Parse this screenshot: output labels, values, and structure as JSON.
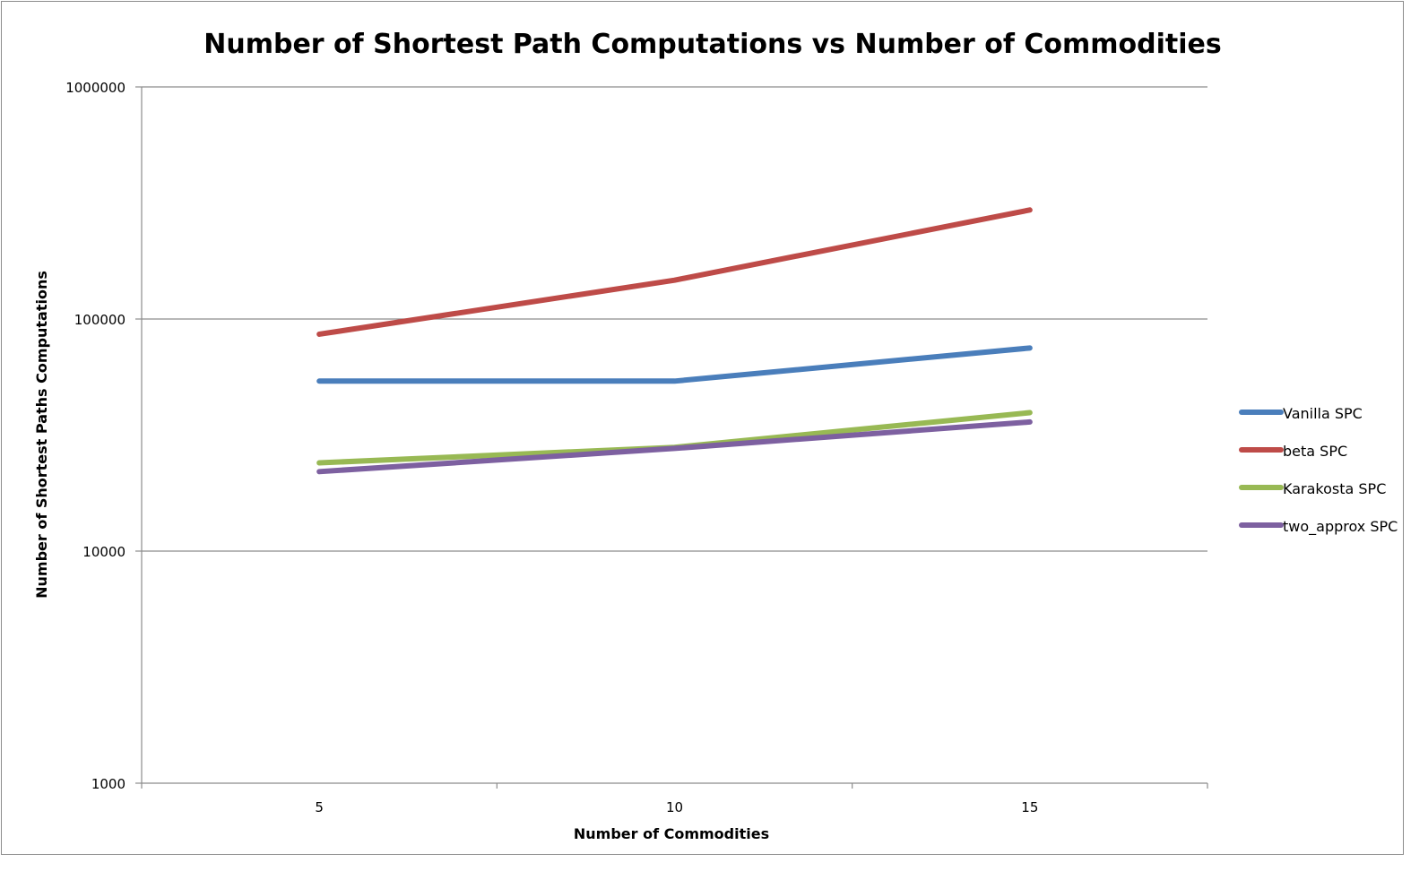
{
  "chart_data": {
    "type": "line",
    "title": "Number of Shortest Path Computations vs Number of Commodities",
    "xlabel": "Number of Commodities",
    "ylabel": "Number of Shortest Paths Computations",
    "y_scale": "log",
    "ylim": [
      1000,
      1000000
    ],
    "y_ticks": [
      "1000",
      "10000",
      "100000",
      "1000000"
    ],
    "categories": [
      "5",
      "10",
      "15"
    ],
    "grid": "horizontal major gridlines on",
    "legend_position": "right",
    "series": [
      {
        "name": "Vanilla SPC",
        "color": "#4a7ebb",
        "values": [
          54000,
          54000,
          75000
        ]
      },
      {
        "name": "beta SPC",
        "color": "#be4b48",
        "values": [
          86000,
          147000,
          295000
        ]
      },
      {
        "name": "Karakosta SPC",
        "color": "#98b954",
        "values": [
          24000,
          28000,
          39500
        ]
      },
      {
        "name": "two_approx SPC",
        "color": "#7d60a0",
        "values": [
          22000,
          27700,
          36000
        ]
      }
    ]
  }
}
